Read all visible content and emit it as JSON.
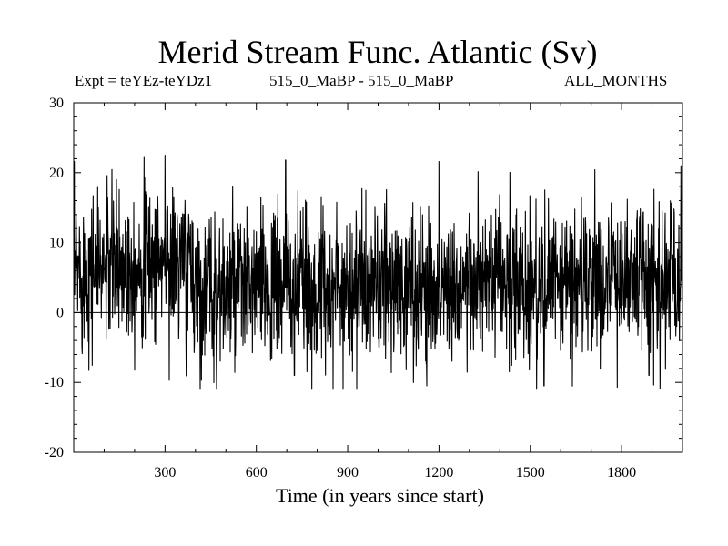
{
  "chart_data": {
    "type": "line",
    "title": "Merid Stream Func. Atlantic (Sv)",
    "subtitle_left": "Expt = teYEz-teYDz1",
    "subtitle_center": "515_0_MaBP - 515_0_MaBP",
    "subtitle_right": "ALL_MONTHS",
    "xlabel": "Time (in years since start)",
    "ylabel": "",
    "xlim": [
      0,
      2000
    ],
    "ylim": [
      -20,
      30
    ],
    "x_ticks": [
      300,
      600,
      900,
      1200,
      1500,
      1800
    ],
    "y_ticks": [
      -20,
      -10,
      0,
      10,
      20,
      30
    ],
    "zero_line": true,
    "series": [
      {
        "name": "Merid Stream Func. Atlantic",
        "color": "#000000",
        "anchors": [
          {
            "x": 0,
            "y": 6
          },
          {
            "x": 100,
            "y": 6.5
          },
          {
            "x": 200,
            "y": 7
          },
          {
            "x": 300,
            "y": 7.5
          },
          {
            "x": 380,
            "y": 6.5
          },
          {
            "x": 420,
            "y": 3
          },
          {
            "x": 500,
            "y": 3
          },
          {
            "x": 600,
            "y": 3.5
          },
          {
            "x": 700,
            "y": 4
          },
          {
            "x": 800,
            "y": 3
          },
          {
            "x": 900,
            "y": 4
          },
          {
            "x": 1000,
            "y": 3.5
          },
          {
            "x": 1100,
            "y": 3.5
          },
          {
            "x": 1200,
            "y": 4
          },
          {
            "x": 1300,
            "y": 4
          },
          {
            "x": 1400,
            "y": 4
          },
          {
            "x": 1500,
            "y": 3.5
          },
          {
            "x": 1600,
            "y": 4
          },
          {
            "x": 1700,
            "y": 4.5
          },
          {
            "x": 1800,
            "y": 5
          },
          {
            "x": 1900,
            "y": 5
          },
          {
            "x": 2000,
            "y": 5
          }
        ],
        "spread": 5.5,
        "peaks": [
          {
            "x": 300,
            "y": 22.5
          },
          {
            "x": 696,
            "y": 21.8
          },
          {
            "x": 1995,
            "y": 21
          },
          {
            "x": 470,
            "y": -11
          },
          {
            "x": 1160,
            "y": -10.5
          },
          {
            "x": 1545,
            "y": -10.5
          },
          {
            "x": 725,
            "y": -9
          },
          {
            "x": 1890,
            "y": -9
          }
        ],
        "max": 22.7,
        "min": -11
      }
    ]
  }
}
